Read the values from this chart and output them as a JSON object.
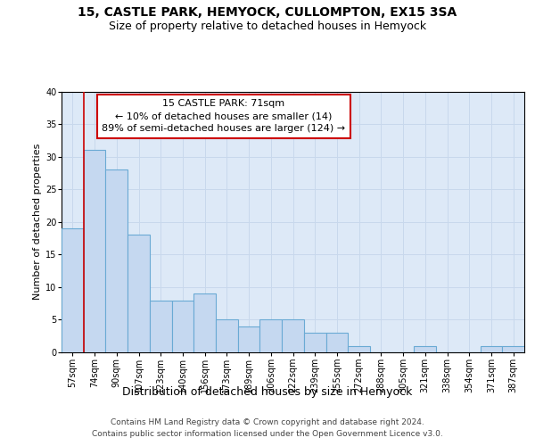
{
  "title_line1": "15, CASTLE PARK, HEMYOCK, CULLOMPTON, EX15 3SA",
  "title_line2": "Size of property relative to detached houses in Hemyock",
  "xlabel": "Distribution of detached houses by size in Hemyock",
  "ylabel": "Number of detached properties",
  "categories": [
    "57sqm",
    "74sqm",
    "90sqm",
    "107sqm",
    "123sqm",
    "140sqm",
    "156sqm",
    "173sqm",
    "189sqm",
    "206sqm",
    "222sqm",
    "239sqm",
    "255sqm",
    "272sqm",
    "288sqm",
    "305sqm",
    "321sqm",
    "338sqm",
    "354sqm",
    "371sqm",
    "387sqm"
  ],
  "values": [
    19,
    31,
    28,
    18,
    8,
    8,
    9,
    5,
    4,
    5,
    5,
    3,
    3,
    1,
    0,
    0,
    1,
    0,
    0,
    1,
    1
  ],
  "bar_color": "#c5d8f0",
  "bar_edge_color": "#6aaad4",
  "highlight_line_color": "#cc0000",
  "annotation_line1": "15 CASTLE PARK: 71sqm",
  "annotation_line2": "← 10% of detached houses are smaller (14)",
  "annotation_line3": "89% of semi-detached houses are larger (124) →",
  "annotation_box_facecolor": "#ffffff",
  "annotation_box_edgecolor": "#cc0000",
  "ylim": [
    0,
    40
  ],
  "yticks": [
    0,
    5,
    10,
    15,
    20,
    25,
    30,
    35,
    40
  ],
  "grid_color": "#c8d8ec",
  "bg_color": "#dde9f7",
  "footer_line1": "Contains HM Land Registry data © Crown copyright and database right 2024.",
  "footer_line2": "Contains public sector information licensed under the Open Government Licence v3.0.",
  "title_fontsize": 10,
  "subtitle_fontsize": 9,
  "ylabel_fontsize": 8,
  "xlabel_fontsize": 9,
  "tick_fontsize": 7,
  "annotation_fontsize": 8,
  "footer_fontsize": 6.5
}
